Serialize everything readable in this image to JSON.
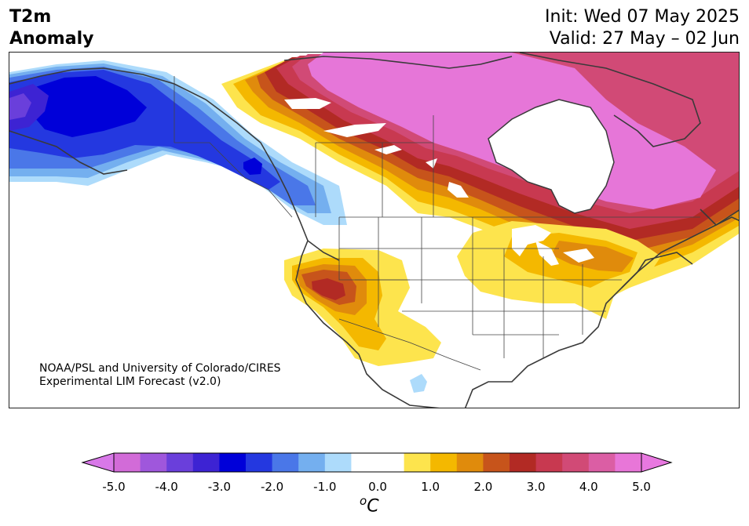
{
  "title": {
    "left_line1": "T2m",
    "left_line2": "Anomaly",
    "right_line1": "Init: Wed 07 May 2025",
    "right_line2": "Valid: 27 May – 02 Jun"
  },
  "credit": {
    "line1": "NOAA/PSL and University of Colorado/CIRES",
    "line2": "Experimental LIM Forecast (v2.0)"
  },
  "colorbar": {
    "unit_base": "o",
    "unit_letter": "C",
    "min": -5.0,
    "max": 5.0,
    "ticks": [
      "-5.0",
      "-4.0",
      "-3.0",
      "-2.0",
      "-1.0",
      "0.0",
      "1.0",
      "2.0",
      "3.0",
      "4.0",
      "5.0"
    ],
    "colors": [
      "#d26bd8",
      "#9f57dc",
      "#6a3fdb",
      "#3d23d3",
      "#0000d9",
      "#2438e0",
      "#4a77e8",
      "#74afef",
      "#addbfb",
      "#ffffff",
      "#ffffff",
      "#fde44d",
      "#f4b800",
      "#e08b0c",
      "#c7541b",
      "#b22a24",
      "#c83950",
      "#d14a76",
      "#db5ea4",
      "#e876d8"
    ],
    "under_color": "#d878e8",
    "over_color": "#e878e0"
  },
  "map_colors": {
    "land": "#ffffff",
    "coast": "#3a3a3a",
    "border": "#444444",
    "b1": "#addbfb",
    "b2": "#74afef",
    "b3": "#4a77e8",
    "b4": "#2438e0",
    "b5": "#0000d9",
    "b6": "#3d23d3",
    "b7": "#6a3fdb",
    "w1": "#fde44d",
    "w2": "#f4b800",
    "w3": "#e08b0c",
    "w4": "#c7541b",
    "w5": "#b22a24",
    "w6": "#c83950",
    "w7": "#d14a76",
    "w8": "#e676d8"
  }
}
